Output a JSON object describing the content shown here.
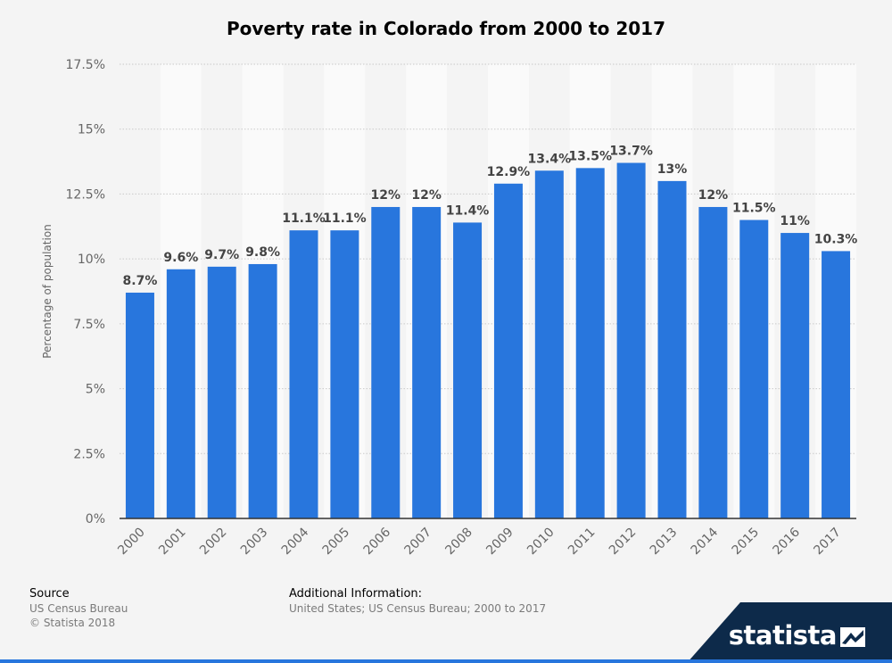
{
  "chart_data": {
    "type": "bar",
    "title": "Poverty rate in Colorado from 2000 to 2017",
    "ylabel": "Percentage of population",
    "xlabel": "",
    "categories": [
      "2000",
      "2001",
      "2002",
      "2003",
      "2004",
      "2005",
      "2006",
      "2007",
      "2008",
      "2009",
      "2010",
      "2011",
      "2012",
      "2013",
      "2014",
      "2015",
      "2016",
      "2017"
    ],
    "values": [
      8.7,
      9.6,
      9.7,
      9.8,
      11.1,
      11.1,
      12,
      12,
      11.4,
      12.9,
      13.4,
      13.5,
      13.7,
      13,
      12,
      11.5,
      11,
      10.3
    ],
    "value_labels": [
      "8.7%",
      "9.6%",
      "9.7%",
      "9.8%",
      "11.1%",
      "11.1%",
      "12%",
      "12%",
      "11.4%",
      "12.9%",
      "13.4%",
      "13.5%",
      "13.7%",
      "13%",
      "12%",
      "11.5%",
      "11%",
      "10.3%"
    ],
    "ylim": [
      0,
      17.5
    ],
    "yticks": [
      0,
      2.5,
      5,
      7.5,
      10,
      12.5,
      15,
      17.5
    ],
    "ytick_labels": [
      "0%",
      "2.5%",
      "5%",
      "7.5%",
      "10%",
      "12.5%",
      "15%",
      "17.5%"
    ],
    "grid": true,
    "bar_color": "#2876dd"
  },
  "footer": {
    "source_label": "Source",
    "source_lines": [
      "US Census Bureau",
      "© Statista 2018"
    ],
    "additional_label": "Additional Information:",
    "additional_text": "United States; US Census Bureau; 2000 to 2017"
  },
  "brand": {
    "name": "statista",
    "icon": "statista-logo-icon",
    "color": "#0d2a4a"
  }
}
